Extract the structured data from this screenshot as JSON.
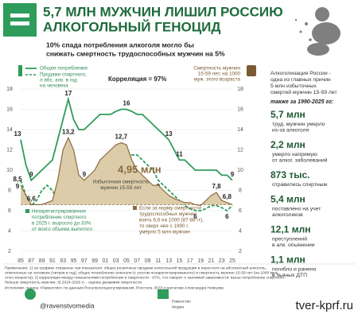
{
  "header": {
    "title": [
      "5,7 МЛН МУЖЧИН ЛИШИЛ РОССИЮ",
      "АЛКОГОЛЬНЫЙ ГЕНОЦИД"
    ],
    "subtitle": [
      "10% спада потребления алкоголя могло бы",
      "снижать смертность трудоспособных мужчин на 5%"
    ]
  },
  "chart_data": {
    "type": "line",
    "categories": [
      "85",
      null,
      "87",
      null,
      "89",
      null,
      "91",
      null,
      "93",
      null,
      "95",
      null,
      "97",
      null,
      "99",
      null,
      "01",
      null,
      "03",
      null,
      "05",
      null,
      "07",
      null,
      "09",
      null,
      "11",
      null,
      "13",
      null,
      "15",
      null,
      "17",
      null,
      "19",
      null,
      "21",
      null,
      "23",
      null,
      "25"
    ],
    "ylim": [
      2,
      18
    ],
    "yticks": [
      2,
      4,
      6,
      8,
      10,
      12,
      14,
      16,
      18
    ],
    "grid": true,
    "baseline": 6.6,
    "series": [
      {
        "name": "Общее потребление",
        "color": "#2e9c5a",
        "dash": false,
        "values": [
          13,
          10.5,
          9,
          9.5,
          10,
          10.5,
          11,
          13,
          15,
          17,
          15,
          14,
          14,
          14.5,
          15,
          15.5,
          15.5,
          15.5,
          15.8,
          16,
          16,
          15.8,
          15.5,
          15.5,
          15,
          14.5,
          14,
          13.5,
          13,
          12,
          11,
          11,
          10.5,
          10,
          10,
          10,
          10,
          10,
          9.5,
          9.5,
          9
        ],
        "value_labels": [
          "13",
          null,
          "9",
          null,
          null,
          null,
          null,
          null,
          null,
          "17",
          null,
          null,
          null,
          null,
          null,
          null,
          null,
          null,
          null,
          null,
          "16",
          null,
          null,
          null,
          null,
          null,
          null,
          null,
          "13",
          null,
          "11",
          null,
          null,
          null,
          null,
          null,
          null,
          null,
          null,
          null,
          "9"
        ]
      },
      {
        "name": [
          "Продажи спиртного,",
          "л абс. алк. в год",
          "на человека"
        ],
        "color": "#2e9c5a",
        "dash": true,
        "values": [
          9,
          7.5,
          6.5,
          7,
          8,
          8.5,
          8,
          7,
          7.5,
          8.5,
          9.5,
          9,
          8.5,
          8.5,
          9,
          9.5,
          10,
          10.5,
          10.5,
          11,
          11,
          11.5,
          11.5,
          11,
          10.5,
          10,
          9,
          8.5,
          8,
          7.5,
          7,
          6.5,
          6.2,
          6,
          6,
          6.2,
          6.5,
          6.5,
          6.3,
          6,
          6.5
        ],
        "value_labels": [
          "9",
          null,
          null,
          null,
          null,
          null,
          null,
          null,
          null,
          null,
          null,
          "9",
          null,
          null,
          null,
          null,
          null,
          null,
          null,
          null,
          null,
          null,
          null,
          null,
          null,
          null,
          "9",
          null,
          null,
          null,
          null,
          null,
          null,
          "6",
          null,
          null,
          null,
          null,
          null,
          "6",
          null
        ]
      },
      {
        "name": [
          "Смертность мужчин",
          "15-59 лет, на 1000",
          "муж. этого возраста"
        ],
        "color": "#8b6a3e",
        "area": "#dccca9",
        "dash": false,
        "values": [
          8.5,
          7.5,
          6.6,
          6.6,
          6.6,
          6.8,
          7,
          9,
          12,
          13.2,
          12,
          9.5,
          9,
          9.5,
          10,
          11,
          11.5,
          12,
          12.5,
          12.7,
          12.5,
          11,
          10,
          9.5,
          9,
          8.5,
          8.5,
          8,
          7.5,
          7.2,
          7,
          6.8,
          6.8,
          6.6,
          6.5,
          7,
          7.5,
          7.8,
          7,
          6.8,
          6.6
        ],
        "value_labels": [
          "8,5",
          null,
          "6,6",
          null,
          null,
          null,
          null,
          null,
          null,
          "13,2",
          null,
          null,
          "9",
          null,
          null,
          null,
          null,
          null,
          null,
          "12,7",
          null,
          null,
          null,
          null,
          null,
          null,
          null,
          null,
          null,
          null,
          null,
          null,
          null,
          null,
          null,
          null,
          null,
          "7,8",
          null,
          "6,8",
          null
        ]
      }
    ],
    "annotations": {
      "correlation": "Корреляция = 97%",
      "excess_total": "4,95 млн",
      "excess_label": [
        "Избыточная смертность",
        "мужчин 15-59 лет"
      ],
      "unregistered": [
        "Незарегистрированное",
        "потребление спиртного",
        "в 2025 г. выросло до 33%",
        "от всего объема выпитого"
      ],
      "norm": [
        "Если за норму смертности",
        "трудоспособных мужчин",
        "взять 6,6 на 1000 (87-88 гг),",
        "то сверх нее с 1990 г.",
        "умерло 5 млн мужчин"
      ]
    }
  },
  "sidebar": {
    "intro": [
      "Алкоголизация России -",
      "одна из главных причин",
      "5 млн избыточных",
      "смертей мужчин 15-59 лет"
    ],
    "period": "также за 1990-2025 гг:",
    "stats": [
      {
        "value": "5,7 млн",
        "lines": [
          "труд. мужчин умерло",
          "из-за алкоголя"
        ]
      },
      {
        "value": "2,2 млн",
        "lines": [
          "умерло напрямую",
          "от алког. заболеваний"
        ]
      },
      {
        "value": "873 тыс.",
        "lines": [
          "отравились спиртным"
        ]
      },
      {
        "value": "5,4 млн",
        "lines": [
          "поставлено на учет",
          "алкоголиков"
        ]
      },
      {
        "value": "12,1 млн",
        "lines": [
          "преступлений",
          "в алк. опьянении"
        ]
      },
      {
        "value": "1,1 млн",
        "lines": [
          "погибло и ранено",
          "в пьяных ДТП"
        ]
      }
    ]
  },
  "footer": {
    "note": [
      "Примечание: 1) на графике отражены три показателя: общее розничные продажи алкогольной продукции в пересчете на абсолютный алкоголь,",
      "отмеченные на человека (литров в год), общее потребление алкоголя (с учетом незарегистрированного) и смертность мужчин 15-59 лет (на 1000 муж.",
      "этого возраста); 2) корреляция между показателями потребления и смертности - 97%, что говорит о значимой зависимости: выше потребление спиртного -",
      "больше смертность мужчин; 3) 2024-2025 гг. - оценка динамики смертности."
    ],
    "sources": "Источники: оценка «Равенство» по данным Росалкогольрегулирования, Росстата, ВОЗ и расчетам Александра Немцова",
    "social": "@ravenstvomedia",
    "brand": [
      "Равенство",
      "Медиа"
    ],
    "site": "tver-kprf.ru"
  }
}
